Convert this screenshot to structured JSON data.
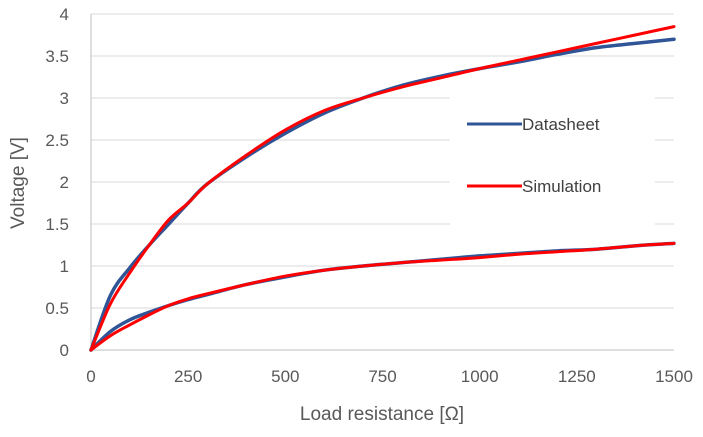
{
  "chart_data": {
    "type": "line",
    "title": "",
    "xlabel": "Load resistance [Ω]",
    "ylabel": "Voltage [V]",
    "xlim": [
      0,
      1500
    ],
    "ylim": [
      0,
      4
    ],
    "x_ticks": [
      "0",
      "250",
      "500",
      "750",
      "1000",
      "1250",
      "1500"
    ],
    "y_ticks": [
      "0",
      "0.5",
      "1",
      "1.5",
      "2",
      "2.5",
      "3",
      "3.5",
      "4"
    ],
    "grid": true,
    "legend_position": "right",
    "series": [
      {
        "name": "Datasheet",
        "color": "#2f5597",
        "curves": [
          {
            "x": [
              0,
              50,
              100,
              150,
              200,
              250,
              300,
              400,
              500,
              600,
              700,
              800,
              900,
              1000,
              1100,
              1200,
              1300,
              1400,
              1500
            ],
            "y": [
              0,
              0.65,
              0.98,
              1.25,
              1.5,
              1.75,
              1.98,
              2.3,
              2.58,
              2.82,
              3.0,
              3.15,
              3.26,
              3.35,
              3.43,
              3.52,
              3.6,
              3.65,
              3.7
            ]
          },
          {
            "x": [
              0,
              50,
              100,
              150,
              200,
              250,
              300,
              400,
              500,
              600,
              700,
              800,
              900,
              1000,
              1100,
              1200,
              1300,
              1400,
              1500
            ],
            "y": [
              0,
              0.22,
              0.36,
              0.45,
              0.53,
              0.6,
              0.66,
              0.78,
              0.87,
              0.95,
              1.0,
              1.04,
              1.08,
              1.12,
              1.15,
              1.18,
              1.2,
              1.24,
              1.27
            ]
          }
        ]
      },
      {
        "name": "Simulation",
        "color": "#ff0000",
        "curves": [
          {
            "x": [
              0,
              50,
              100,
              150,
              200,
              250,
              300,
              400,
              500,
              600,
              700,
              800,
              900,
              1000,
              1100,
              1200,
              1300,
              1400,
              1500
            ],
            "y": [
              0,
              0.55,
              0.92,
              1.25,
              1.55,
              1.75,
              1.98,
              2.32,
              2.62,
              2.85,
              3.0,
              3.13,
              3.24,
              3.35,
              3.45,
              3.55,
              3.65,
              3.75,
              3.85
            ]
          },
          {
            "x": [
              0,
              50,
              100,
              150,
              200,
              250,
              300,
              400,
              500,
              600,
              700,
              800,
              900,
              1000,
              1100,
              1200,
              1300,
              1400,
              1500
            ],
            "y": [
              0,
              0.17,
              0.3,
              0.42,
              0.53,
              0.61,
              0.67,
              0.78,
              0.88,
              0.95,
              1.0,
              1.04,
              1.07,
              1.1,
              1.14,
              1.17,
              1.2,
              1.24,
              1.27
            ]
          }
        ]
      }
    ]
  }
}
